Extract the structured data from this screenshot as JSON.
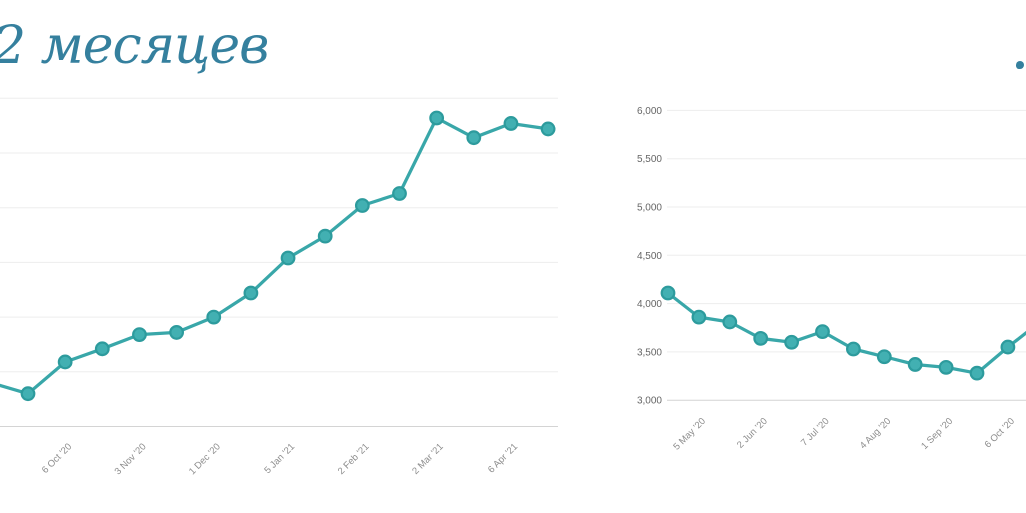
{
  "page": {
    "heading_left": "2 месяцев"
  },
  "colors": {
    "heading": "#35809e",
    "line": "#39a7a9",
    "marker_fill": "#42b0b2",
    "marker_stroke": "#2d9b9d",
    "grid": "#ededed",
    "axis": "#d4d4d4",
    "x_label_text": "#8d8d8d",
    "y_label_text": "#666666"
  },
  "chart_data": [
    {
      "id": "left",
      "type": "line",
      "title": "",
      "xlabel": "",
      "ylabel": "",
      "grid": true,
      "legend": false,
      "ylim": [
        3000,
        6000
      ],
      "y_step": 500,
      "y_axis_labels_visible": false,
      "clipped_edge": "left",
      "x_tick_labels": [
        "6 Oct '20",
        "3 Nov '20",
        "1 Dec '20",
        "5 Jan '21",
        "2 Feb '21",
        "2 Mar '21",
        "6 Apr '21"
      ],
      "tick_point_indices": [
        1,
        3,
        5,
        7,
        9,
        11,
        13
      ],
      "lead_in_value": 3400,
      "values": [
        3300,
        3590,
        3710,
        3840,
        3860,
        4000,
        4220,
        4540,
        4740,
        5020,
        5130,
        5820,
        5640,
        5770,
        5720
      ]
    },
    {
      "id": "right",
      "type": "line",
      "title": "",
      "xlabel": "",
      "ylabel": "",
      "grid": true,
      "legend": false,
      "ylim": [
        3000,
        6000
      ],
      "y_step": 500,
      "y_tick_labels": [
        "6,000",
        "5,500",
        "5,000",
        "4,500",
        "4,000",
        "3,500",
        "3,000"
      ],
      "clipped_edge": "right",
      "x_tick_labels": [
        "5 May '20",
        "2 Jun '20",
        "7 Jul '20",
        "4 Aug '20",
        "1 Sep '20",
        "6 Oct '20"
      ],
      "tick_point_indices": [
        1,
        3,
        5,
        7,
        9,
        11
      ],
      "values": [
        4110,
        3860,
        3810,
        3640,
        3600,
        3710,
        3530,
        3450,
        3370,
        3340,
        3280,
        3550
      ],
      "lead_out_value": 3800
    }
  ]
}
